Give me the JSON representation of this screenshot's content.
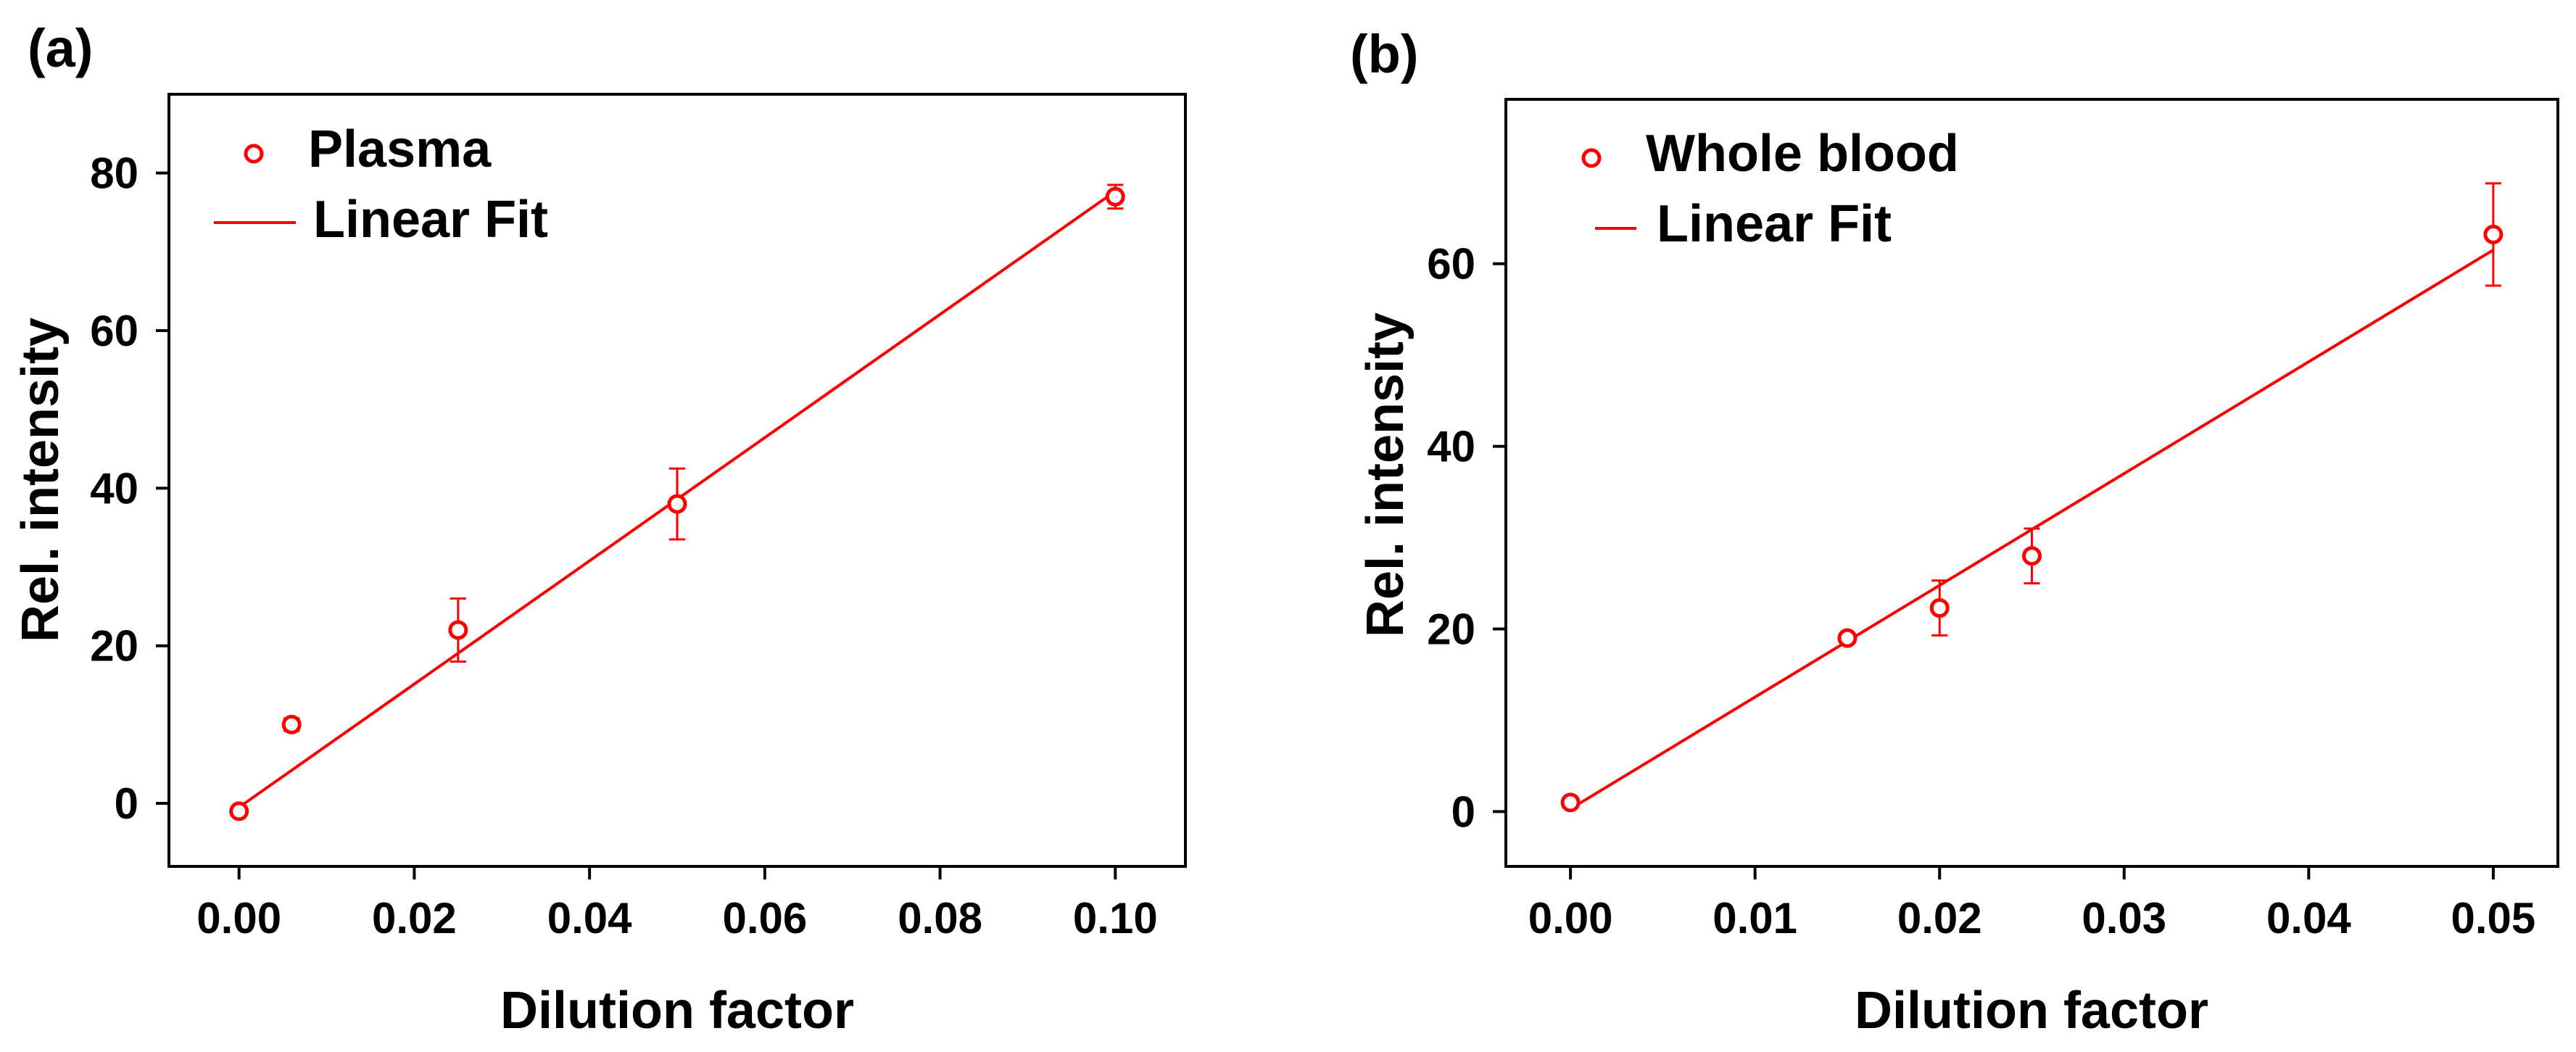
{
  "colors": {
    "series": "#ff0000",
    "axes": "#000000",
    "background": "#ffffff"
  },
  "chart_data": [
    {
      "panel_label": "(a)",
      "type": "scatter",
      "title": "",
      "xlabel": "Dilution factor",
      "ylabel": "Rel. intensity",
      "xlim": [
        -0.008,
        0.108
      ],
      "ylim": [
        -8,
        90
      ],
      "xticks": [
        0.0,
        0.02,
        0.04,
        0.06,
        0.08,
        0.1
      ],
      "xtick_labels": [
        "0.00",
        "0.02",
        "0.04",
        "0.06",
        "0.08",
        "0.10"
      ],
      "yticks": [
        0,
        20,
        40,
        60,
        80
      ],
      "ytick_labels": [
        "0",
        "20",
        "40",
        "60",
        "80"
      ],
      "grid": false,
      "legend_position": "top-left",
      "series": [
        {
          "name": "Plasma",
          "kind": "scatter",
          "marker": "open-circle",
          "x": [
            0.0,
            0.006,
            0.025,
            0.05,
            0.1
          ],
          "y": [
            -1,
            10,
            22,
            38,
            77
          ],
          "yerr": [
            0.6,
            0.8,
            4,
            4.5,
            1.5
          ]
        },
        {
          "name": "Linear Fit",
          "kind": "line",
          "x": [
            0.0,
            0.1
          ],
          "y": [
            -0.5,
            77.7
          ]
        }
      ]
    },
    {
      "panel_label": "(b)",
      "type": "scatter",
      "title": "",
      "xlabel": "Dilution factor",
      "ylabel": "Rel. intensity",
      "xlim": [
        -0.0035,
        0.0535
      ],
      "ylim": [
        -6,
        78
      ],
      "xticks": [
        0.0,
        0.01,
        0.02,
        0.03,
        0.04,
        0.05
      ],
      "xtick_labels": [
        "0.00",
        "0.01",
        "0.02",
        "0.03",
        "0.04",
        "0.05"
      ],
      "yticks": [
        0,
        20,
        40,
        60
      ],
      "ytick_labels": [
        "0",
        "20",
        "40",
        "60"
      ],
      "grid": false,
      "legend_position": "top-left",
      "series": [
        {
          "name": "Whole blood",
          "kind": "scatter",
          "marker": "open-circle",
          "x": [
            0.0,
            0.015,
            0.02,
            0.025,
            0.05
          ],
          "y": [
            1,
            19,
            22.3,
            28,
            63.2
          ],
          "yerr": [
            0.5,
            0.5,
            3,
            3,
            5.6
          ]
        },
        {
          "name": "Linear Fit",
          "kind": "line",
          "x": [
            0.0,
            0.05
          ],
          "y": [
            0.3,
            61.5
          ]
        }
      ]
    }
  ]
}
